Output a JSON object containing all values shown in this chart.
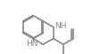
{
  "bg_color": "#ffffff",
  "line_color": "#888888",
  "text_color": "#888888",
  "bond_lw": 1.2,
  "font_size": 6.5,
  "fig_bg": "#ffffff"
}
